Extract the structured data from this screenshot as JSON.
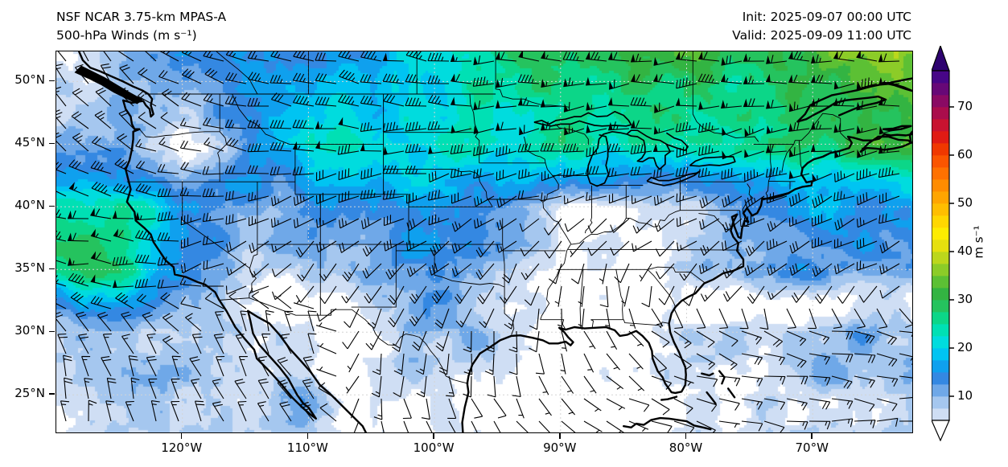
{
  "figure": {
    "title_line1": "NSF NCAR 3.75-km MPAS-A",
    "title_line2": "500-hPa Winds (m s⁻¹)",
    "init_text": "Init: 2025-09-07 00:00 UTC",
    "valid_text": "Valid: 2025-09-09 11:00 UTC",
    "background": "#ffffff"
  },
  "axes": {
    "lat_tick_labels": [
      "50°N",
      "45°N",
      "40°N",
      "35°N",
      "30°N",
      "25°N"
    ],
    "lat_tick_values": [
      50,
      45,
      40,
      35,
      30,
      25
    ],
    "lon_tick_labels": [
      "120°W",
      "110°W",
      "100°W",
      "90°W",
      "80°W",
      "70°W"
    ],
    "lon_tick_values": [
      -120,
      -110,
      -100,
      -90,
      -80,
      -70
    ],
    "domain": {
      "lon_min": -130,
      "lon_max": -62.1,
      "lat_min": 22.0,
      "lat_max": 52.4
    },
    "gridline_color": "#d4d4d4"
  },
  "colorbar": {
    "unit": "m s⁻¹",
    "tick_values": [
      10,
      20,
      30,
      40,
      50,
      60,
      70
    ],
    "level_min": 5,
    "level_step": 2.5,
    "under_color": "#ffffff",
    "over_color": "#2e0370",
    "colors": [
      "#cfdef4",
      "#a5c7ef",
      "#6fa8e8",
      "#3488e2",
      "#0fa0ee",
      "#00c4f2",
      "#00dcde",
      "#00e0b4",
      "#0cd688",
      "#25c35e",
      "#33b442",
      "#5cc034",
      "#8ccc28",
      "#bcd71c",
      "#e6e00e",
      "#fdec00",
      "#ffd700",
      "#ffbe00",
      "#ffa500",
      "#ff8c00",
      "#ff7100",
      "#fb5500",
      "#f03800",
      "#e01b14",
      "#c81330",
      "#aa0d4c",
      "#8a0a64",
      "#670877",
      "#470687"
    ]
  },
  "chart_data": {
    "type": "heatmap",
    "subtype": "filled wind-speed field with wind barbs over North America",
    "title": "NSF NCAR 3.75-km MPAS-A 500-hPa Winds",
    "units": "m s⁻¹",
    "xlabel": "longitude",
    "ylabel": "latitude",
    "lon_range": [
      -130,
      -62.1
    ],
    "lat_range": [
      22.0,
      52.4
    ],
    "fill_levels": "5 to 77.5 step 2.5 m/s, white below 5",
    "barb_convention": {
      "half_barb": 2.5,
      "full_barb": 5,
      "pennant": 25,
      "calm_circle": "< 2.5"
    },
    "legend_position": "right-colorbar",
    "grid_lons": [
      -130,
      -125,
      -120,
      -115,
      -110,
      -105,
      -100,
      -95,
      -90,
      -85,
      -80,
      -75,
      -70,
      -65,
      -62
    ],
    "grid_lats": [
      52.4,
      50,
      45,
      40,
      35,
      30,
      25,
      22
    ],
    "wind_speed_ms": [
      [
        7,
        9,
        12,
        15,
        16,
        18,
        22,
        26,
        28,
        30,
        31,
        30,
        32,
        36,
        37
      ],
      [
        6,
        8,
        10,
        13,
        15,
        17,
        20,
        25,
        27,
        28,
        28,
        28,
        30,
        33,
        34
      ],
      [
        12,
        10,
        4,
        13,
        23,
        22,
        20,
        23,
        26,
        24,
        22,
        24,
        27,
        30,
        31
      ],
      [
        24,
        26,
        18,
        13,
        12,
        16,
        17,
        12,
        4,
        6,
        8,
        14,
        16,
        16,
        16
      ],
      [
        26,
        28,
        12,
        7,
        7,
        9,
        15,
        8,
        5,
        3,
        6,
        12,
        13,
        12,
        12
      ],
      [
        10,
        9,
        8,
        8,
        6,
        7,
        10,
        8,
        2,
        3,
        6,
        8,
        10,
        11,
        11
      ],
      [
        8,
        8,
        7,
        8,
        12,
        6,
        5,
        4,
        2,
        3,
        4,
        6,
        8,
        4,
        9
      ],
      [
        6,
        7,
        7,
        9,
        10,
        5,
        4,
        3,
        2,
        3,
        4,
        5,
        7,
        8,
        8
      ]
    ],
    "wind_dir_from_deg": [
      [
        335,
        320,
        300,
        290,
        285,
        280,
        275,
        272,
        270,
        268,
        268,
        268,
        268,
        270,
        270
      ],
      [
        335,
        320,
        300,
        288,
        282,
        278,
        274,
        270,
        268,
        266,
        265,
        265,
        264,
        266,
        268
      ],
      [
        320,
        308,
        295,
        282,
        272,
        268,
        266,
        264,
        262,
        260,
        258,
        256,
        258,
        262,
        264
      ],
      [
        285,
        278,
        268,
        252,
        244,
        246,
        248,
        242,
        238,
        240,
        242,
        240,
        242,
        246,
        250
      ],
      [
        278,
        274,
        258,
        228,
        210,
        216,
        226,
        212,
        200,
        195,
        222,
        232,
        236,
        240,
        244
      ],
      [
        330,
        325,
        315,
        340,
        355,
        200,
        196,
        186,
        168,
        145,
        118,
        108,
        102,
        100,
        100
      ],
      [
        350,
        345,
        338,
        328,
        318,
        175,
        162,
        150,
        138,
        120,
        108,
        100,
        96,
        95,
        95
      ],
      [
        355,
        350,
        344,
        334,
        324,
        165,
        152,
        140,
        128,
        114,
        104,
        98,
        94,
        92,
        90
      ]
    ]
  }
}
